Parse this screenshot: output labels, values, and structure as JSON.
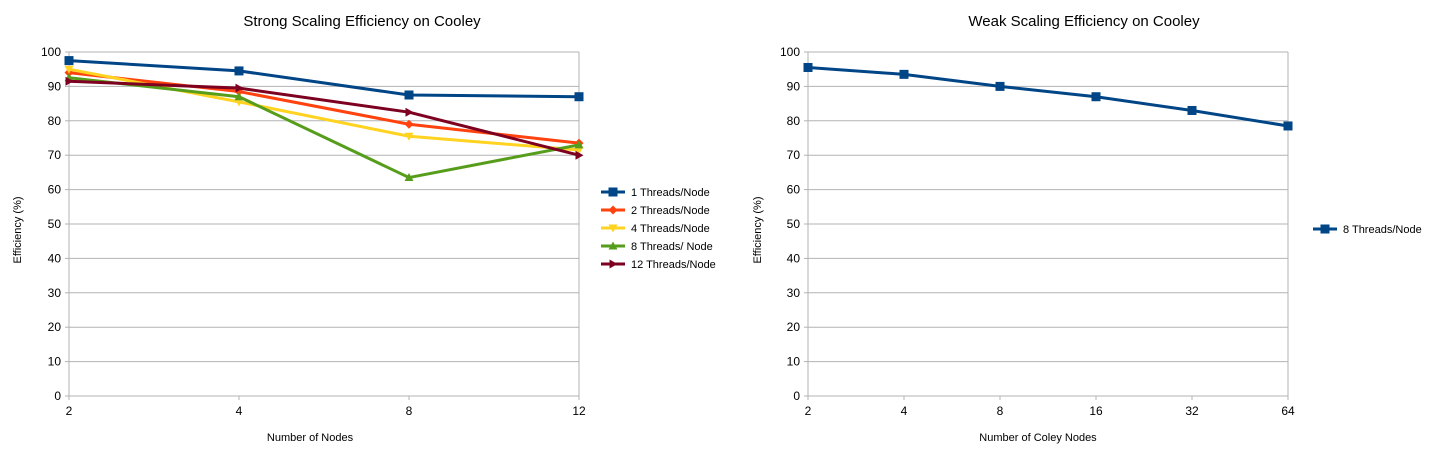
{
  "chart_data": [
    {
      "type": "line",
      "title": "Strong Scaling Efficiency on Cooley",
      "xlabel": "Number of Nodes",
      "ylabel": "Efficiency (%)",
      "x": [
        2,
        4,
        8,
        12
      ],
      "ylim": [
        0,
        100
      ],
      "yticks": [
        0,
        10,
        20,
        30,
        40,
        50,
        60,
        70,
        80,
        90,
        100
      ],
      "grid": true,
      "legend_position": "right",
      "series": [
        {
          "name": "1 Threads/Node",
          "values": [
            97.5,
            94.5,
            87.5,
            87
          ],
          "color": "#004586",
          "marker": "square"
        },
        {
          "name": "2 Threads/Node",
          "values": [
            94,
            88.5,
            79,
            73.5
          ],
          "color": "#ff420e",
          "marker": "diamond"
        },
        {
          "name": "4 Threads/Node",
          "values": [
            95,
            85.5,
            75.5,
            71.5
          ],
          "color": "#ffd320",
          "marker": "triangle-down"
        },
        {
          "name": "8 Threads/ Node",
          "values": [
            92.5,
            87,
            63.5,
            73
          ],
          "color": "#579d1c",
          "marker": "triangle-up"
        },
        {
          "name": "12 Threads/Node",
          "values": [
            91.5,
            89.5,
            82.5,
            70
          ],
          "color": "#7e0021",
          "marker": "triangle-right"
        }
      ]
    },
    {
      "type": "line",
      "title": "Weak Scaling Efficiency on Cooley",
      "xlabel": "Number of Coley Nodes",
      "ylabel": "Efficiency (%)",
      "x": [
        2,
        4,
        8,
        16,
        32,
        64
      ],
      "ylim": [
        0,
        100
      ],
      "yticks": [
        0,
        10,
        20,
        30,
        40,
        50,
        60,
        70,
        80,
        90,
        100
      ],
      "grid": true,
      "legend_position": "right",
      "series": [
        {
          "name": "8 Threads/Node",
          "values": [
            95.5,
            93.5,
            90,
            87,
            83,
            78.5
          ],
          "color": "#004586",
          "marker": "square"
        }
      ]
    }
  ]
}
